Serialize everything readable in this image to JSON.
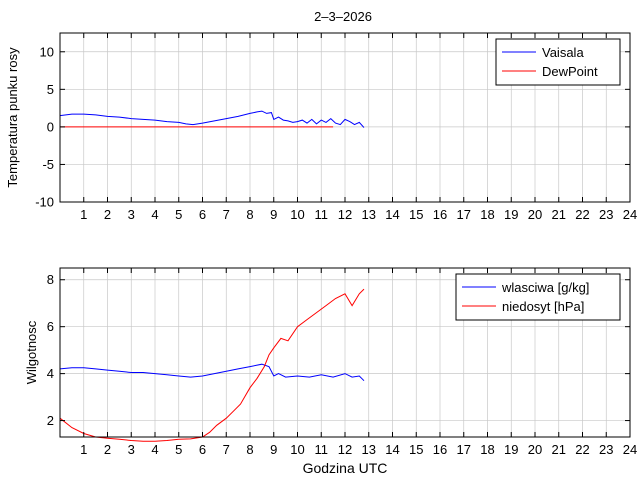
{
  "figure": {
    "title": "2–3–2026"
  },
  "chart_data": [
    {
      "type": "line",
      "title": "2–3–2026",
      "xlabel": "",
      "ylabel": "Temperatura punku rosy",
      "xlim": [
        0,
        24
      ],
      "ylim": [
        -10,
        12.5
      ],
      "xticks": [
        1,
        2,
        3,
        4,
        5,
        6,
        7,
        8,
        9,
        10,
        11,
        12,
        13,
        14,
        15,
        16,
        17,
        18,
        19,
        20,
        21,
        22,
        23,
        24
      ],
      "yticks": [
        -10,
        -5,
        0,
        5,
        10
      ],
      "grid": true,
      "legend": "top-right",
      "series": [
        {
          "name": "Vaisala",
          "color": "#0000ff",
          "x": [
            0,
            0.5,
            1,
            1.5,
            2,
            2.5,
            3,
            3.5,
            4,
            4.5,
            5,
            5.3,
            5.6,
            6,
            6.5,
            7,
            7.5,
            8,
            8.3,
            8.5,
            8.7,
            8.9,
            9.0,
            9.2,
            9.4,
            9.6,
            9.8,
            10,
            10.2,
            10.4,
            10.6,
            10.8,
            11,
            11.2,
            11.4,
            11.6,
            11.8,
            12,
            12.2,
            12.4,
            12.6,
            12.8
          ],
          "y": [
            1.5,
            1.7,
            1.7,
            1.6,
            1.4,
            1.3,
            1.1,
            1.0,
            0.9,
            0.7,
            0.6,
            0.4,
            0.3,
            0.5,
            0.8,
            1.1,
            1.4,
            1.8,
            2.0,
            2.1,
            1.8,
            1.9,
            1.0,
            1.3,
            0.9,
            0.8,
            0.6,
            0.7,
            0.9,
            0.5,
            1.0,
            0.4,
            0.9,
            0.6,
            1.1,
            0.5,
            0.3,
            1.0,
            0.7,
            0.3,
            0.6,
            -0.1
          ]
        },
        {
          "name": "DewPoint",
          "color": "#ff0000",
          "x": [
            0,
            11.5
          ],
          "y": [
            0,
            0
          ]
        }
      ]
    },
    {
      "type": "line",
      "title": "",
      "xlabel": "Godzina UTC",
      "ylabel": "Wilgotnosc",
      "xlim": [
        0,
        24
      ],
      "ylim": [
        1.3,
        8.5
      ],
      "xticks": [
        1,
        2,
        3,
        4,
        5,
        6,
        7,
        8,
        9,
        10,
        11,
        12,
        13,
        14,
        15,
        16,
        17,
        18,
        19,
        20,
        21,
        22,
        23,
        24
      ],
      "yticks": [
        2,
        4,
        6,
        8
      ],
      "grid": true,
      "legend": "top-right",
      "series": [
        {
          "name": "wlasciwa [g/kg]",
          "color": "#0000ff",
          "x": [
            0,
            0.5,
            1,
            1.5,
            2,
            2.5,
            3,
            3.5,
            4,
            4.5,
            5,
            5.5,
            6,
            6.5,
            7,
            7.5,
            8,
            8.5,
            8.8,
            9.0,
            9.2,
            9.5,
            10,
            10.5,
            11,
            11.5,
            12,
            12.3,
            12.6,
            12.8
          ],
          "y": [
            4.2,
            4.25,
            4.25,
            4.2,
            4.15,
            4.1,
            4.05,
            4.05,
            4.0,
            3.95,
            3.9,
            3.85,
            3.9,
            4.0,
            4.1,
            4.2,
            4.3,
            4.4,
            4.3,
            3.9,
            4.0,
            3.85,
            3.9,
            3.85,
            3.95,
            3.85,
            4.0,
            3.85,
            3.9,
            3.7
          ]
        },
        {
          "name": "niedosyt [hPa]",
          "color": "#ff0000",
          "x": [
            0,
            0.5,
            1,
            1.5,
            2,
            2.5,
            3,
            3.5,
            4,
            4.5,
            5,
            5.5,
            6,
            6.3,
            6.6,
            7,
            7.3,
            7.6,
            8,
            8.3,
            8.6,
            8.8,
            9.0,
            9.3,
            9.6,
            10,
            10.4,
            10.8,
            11.2,
            11.6,
            12,
            12.3,
            12.6,
            12.8
          ],
          "y": [
            2.1,
            1.7,
            1.45,
            1.3,
            1.25,
            1.2,
            1.15,
            1.12,
            1.12,
            1.15,
            1.2,
            1.22,
            1.3,
            1.5,
            1.8,
            2.1,
            2.4,
            2.7,
            3.4,
            3.8,
            4.3,
            4.8,
            5.1,
            5.5,
            5.4,
            6.0,
            6.3,
            6.6,
            6.9,
            7.2,
            7.4,
            6.9,
            7.4,
            7.6
          ]
        }
      ]
    }
  ]
}
